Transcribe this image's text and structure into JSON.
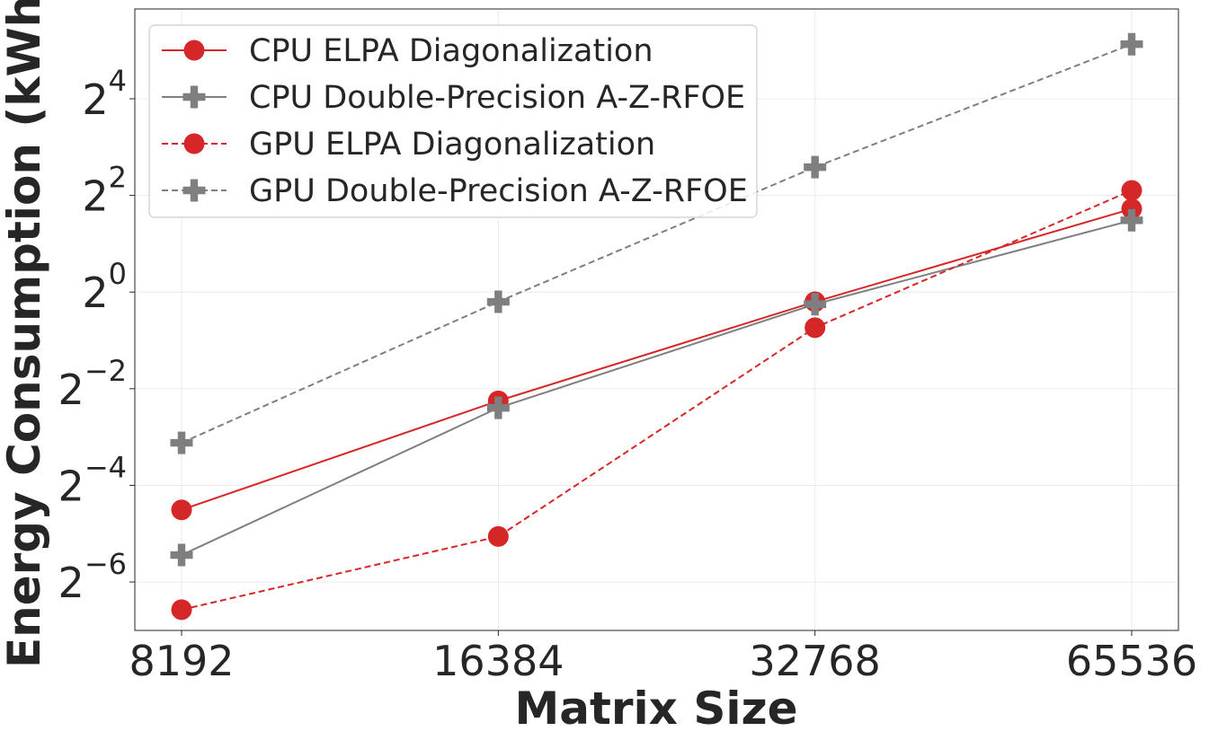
{
  "chart_data": {
    "type": "line",
    "title": "",
    "xlabel": "Matrix Size",
    "ylabel": "Energy Consumption (kWh)",
    "x_scale": "log2",
    "y_scale": "log2",
    "x": [
      8192,
      16384,
      32768,
      65536
    ],
    "xticks": [
      "8192",
      "16384",
      "32768",
      "65536"
    ],
    "ytick_exponents": [
      -6,
      -4,
      -2,
      0,
      2,
      4
    ],
    "ytick_base": "2",
    "ylim": [
      0.0078,
      58
    ],
    "grid": true,
    "legend_position": "top-left",
    "series": [
      {
        "name": "CPU ELPA Diagonalization",
        "color": "#d62728",
        "marker": "circle",
        "linestyle": "solid",
        "values": [
          0.044,
          0.21,
          0.87,
          3.3
        ]
      },
      {
        "name": "CPU Double-Precision A-Z-RFOE",
        "color": "#7f7f7f",
        "marker": "plus",
        "linestyle": "solid",
        "values": [
          0.023,
          0.19,
          0.84,
          2.8
        ]
      },
      {
        "name": "GPU ELPA Diagonalization",
        "color": "#d62728",
        "marker": "circle",
        "linestyle": "dashed",
        "values": [
          0.0105,
          0.03,
          0.6,
          4.3
        ]
      },
      {
        "name": "GPU Double-Precision A-Z-RFOE",
        "color": "#7f7f7f",
        "marker": "plus",
        "linestyle": "dashed",
        "values": [
          0.115,
          0.87,
          6.0,
          35.0
        ]
      }
    ]
  }
}
